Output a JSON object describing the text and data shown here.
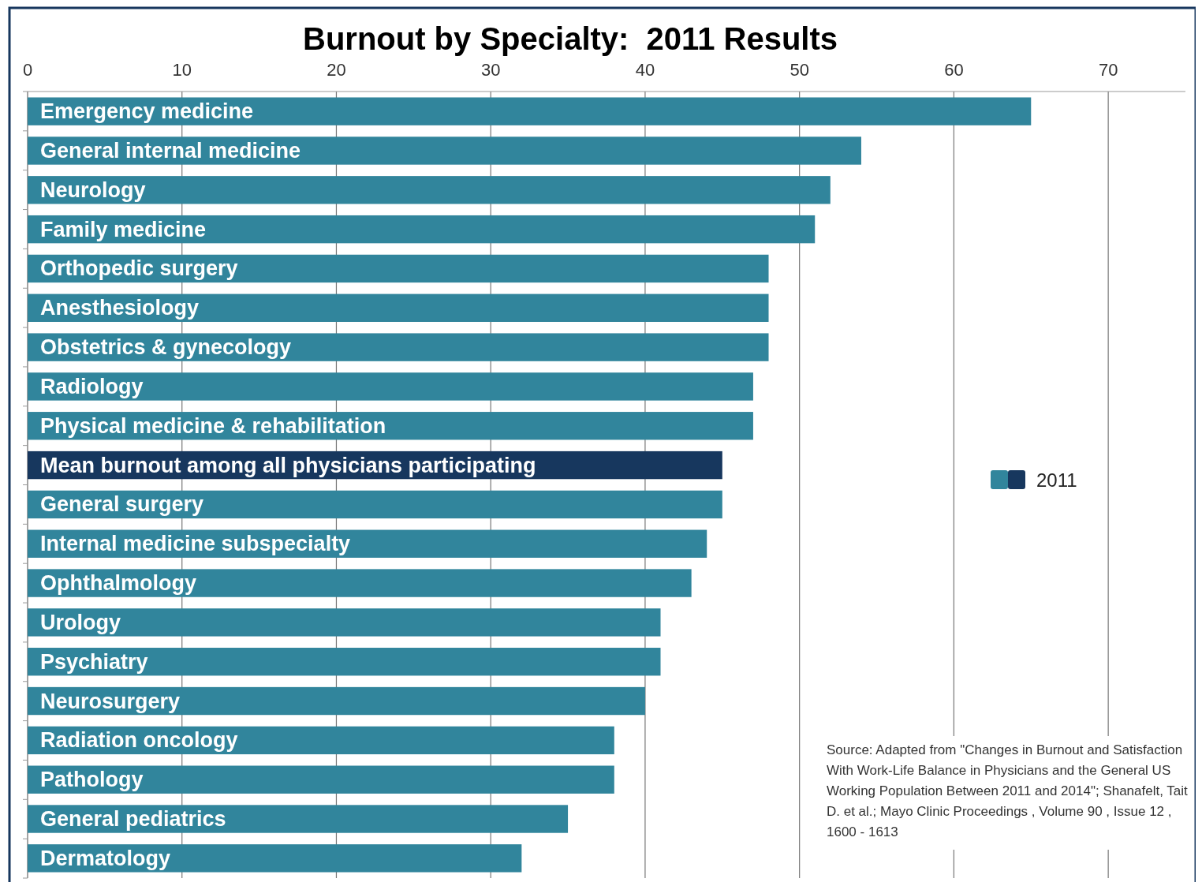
{
  "chart_data": {
    "type": "bar",
    "orientation": "horizontal",
    "title": "Burnout by Specialty:  2011 Results",
    "categories": [
      "Emergency medicine",
      "General internal medicine",
      "Neurology",
      "Family medicine",
      "Orthopedic surgery",
      "Anesthesiology",
      "Obstetrics & gynecology",
      "Radiology",
      "Physical medicine & rehabilitation",
      "Mean burnout among all physicians participating",
      "General surgery",
      "Internal medicine subspecialty",
      "Ophthalmology",
      "Urology",
      "Psychiatry",
      "Neurosurgery",
      "Radiation oncology",
      "Pathology",
      "General pediatrics",
      "Dermatology"
    ],
    "series": [
      {
        "name": "2011",
        "color": "#31859c",
        "values": [
          65,
          54,
          52,
          51,
          48,
          48,
          48,
          47,
          47,
          45,
          45,
          44,
          43,
          41,
          41,
          40,
          38,
          38,
          35,
          32
        ],
        "colors": [
          "#31859c",
          "#31859c",
          "#31859c",
          "#31859c",
          "#31859c",
          "#31859c",
          "#31859c",
          "#31859c",
          "#31859c",
          "#17375e",
          "#31859c",
          "#31859c",
          "#31859c",
          "#31859c",
          "#31859c",
          "#31859c",
          "#31859c",
          "#31859c",
          "#31859c",
          "#31859c"
        ]
      }
    ],
    "xlim": [
      0,
      75
    ],
    "xticks": [
      0,
      10,
      20,
      30,
      40,
      50,
      60,
      70
    ],
    "grid": "x",
    "legend": "right",
    "annotations": [
      "Source:  Adapted from \"Changes in Burnout and Satisfaction With Work-Life Balance in Physicians and the General US Working Population Between 2011 and 2014\"; Shanafelt, Tait D. et al.; Mayo Clinic Proceedings , Volume 90 , Issue 12 , 1600 - 1613"
    ]
  }
}
